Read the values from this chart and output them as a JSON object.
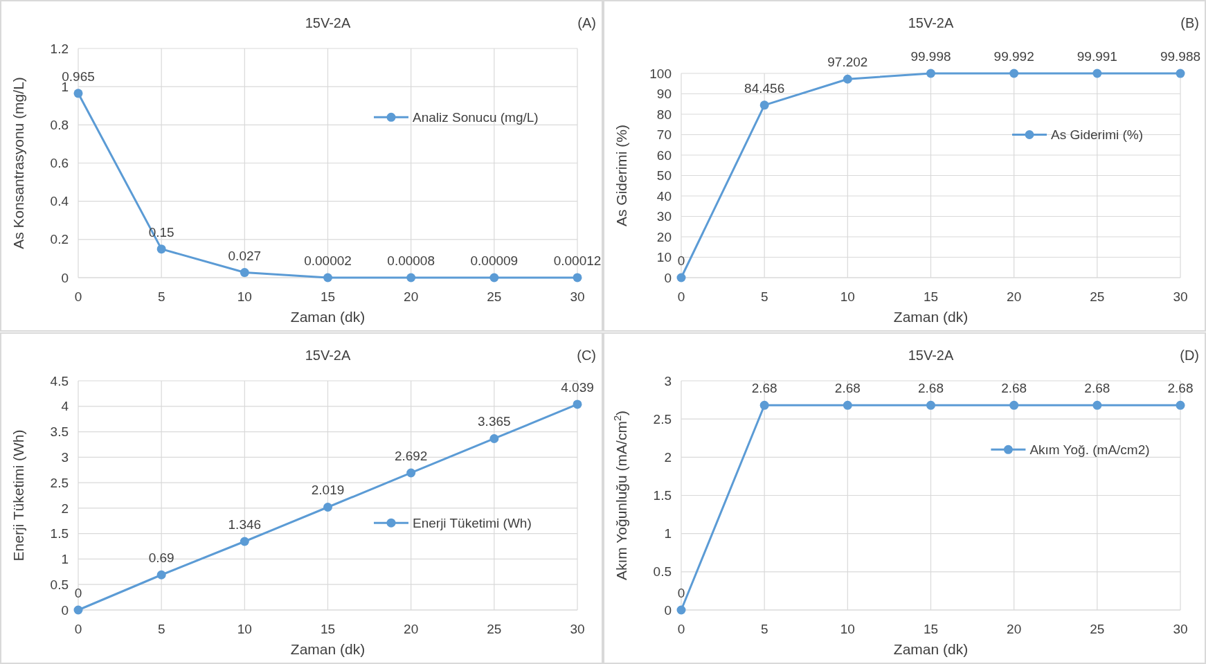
{
  "chart_data": [
    {
      "type": "line",
      "title": "15V-2A",
      "xlabel": "Zaman (dk)",
      "ylabel": "As Konsantrasyonu (mg/L)",
      "annotations": [
        "(A)"
      ],
      "x": [
        0,
        5,
        10,
        15,
        20,
        25,
        30
      ],
      "series": [
        {
          "name": "Analiz Sonucu (mg/L)",
          "color": "#5b9bd5",
          "values": [
            0.965,
            0.15,
            0.027,
            2e-05,
            8e-05,
            9e-05,
            0.00012
          ],
          "value_labels": [
            "0.965",
            "0.15",
            "0.027",
            "0.00002",
            "0.00008",
            "0.00009",
            "0.00012"
          ]
        }
      ],
      "xlim": [
        0,
        30
      ],
      "xticks": [
        0,
        5,
        10,
        15,
        20,
        25,
        30
      ],
      "ylim": [
        0,
        1.2
      ],
      "yticks": [
        0,
        0.2,
        0.4,
        0.6,
        0.8,
        1,
        1.2
      ],
      "grid": true,
      "legend": "top right",
      "marker": "circle",
      "data_labels": true
    },
    {
      "type": "line",
      "title": "15V-2A",
      "xlabel": "Zaman (dk)",
      "ylabel": "As Giderimi (%)",
      "annotations": [
        "(B)"
      ],
      "x": [
        0,
        5,
        10,
        15,
        20,
        25,
        30
      ],
      "series": [
        {
          "name": "As Giderimi (%)",
          "color": "#5b9bd5",
          "values": [
            0,
            84.456,
            97.202,
            99.998,
            99.992,
            99.991,
            99.988
          ]
        }
      ],
      "xlim": [
        0,
        30
      ],
      "xticks": [
        0,
        5,
        10,
        15,
        20,
        25,
        30
      ],
      "ylim": [
        0,
        100
      ],
      "yticks": [
        0,
        10,
        20,
        30,
        40,
        50,
        60,
        70,
        80,
        90,
        100
      ],
      "grid": true,
      "legend": "top right",
      "marker": "circle",
      "data_labels": true
    },
    {
      "type": "line",
      "title": "15V-2A",
      "xlabel": "Zaman (dk)",
      "ylabel": "Enerji Tüketimi (Wh)",
      "annotations": [
        "(C)"
      ],
      "x": [
        0,
        5,
        10,
        15,
        20,
        25,
        30
      ],
      "series": [
        {
          "name": "Enerji Tüketimi (Wh)",
          "color": "#5b9bd5",
          "values": [
            0,
            0.69,
            1.346,
            2.019,
            2.692,
            3.365,
            4.039
          ]
        }
      ],
      "xlim": [
        0,
        30
      ],
      "xticks": [
        0,
        5,
        10,
        15,
        20,
        25,
        30
      ],
      "ylim": [
        0,
        4.5
      ],
      "yticks": [
        0,
        0.5,
        1,
        1.5,
        2,
        2.5,
        3,
        3.5,
        4,
        4.5
      ],
      "grid": true,
      "legend": "right",
      "marker": "circle",
      "data_labels": true
    },
    {
      "type": "line",
      "title": "15V-2A",
      "xlabel": "Zaman (dk)",
      "ylabel": "Akım Yoğunluğu (mA/cm$^{2}$)",
      "annotations": [
        "(D)"
      ],
      "x": [
        0,
        5,
        10,
        15,
        20,
        25,
        30
      ],
      "series": [
        {
          "name": "Akım Yoğ. (mA/cm2)",
          "color": "#5b9bd5",
          "values": [
            0,
            2.68,
            2.68,
            2.68,
            2.68,
            2.68,
            2.68
          ]
        }
      ],
      "xlim": [
        0,
        30
      ],
      "xticks": [
        0,
        5,
        10,
        15,
        20,
        25,
        30
      ],
      "ylim": [
        0,
        3
      ],
      "yticks": [
        0,
        0.5,
        1,
        1.5,
        2,
        2.5,
        3
      ],
      "grid": true,
      "legend": "top right",
      "marker": "circle",
      "data_labels": true
    }
  ]
}
